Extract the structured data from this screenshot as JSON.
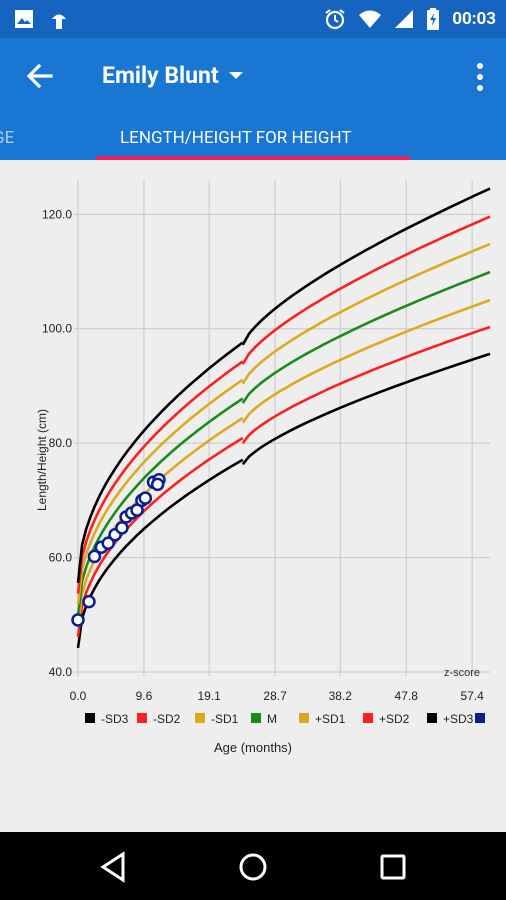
{
  "status_bar": {
    "time": "00:03",
    "icons": [
      "gallery-icon",
      "android-icon",
      "alarm-icon",
      "wifi-icon",
      "signal-icon",
      "battery-charging-icon"
    ]
  },
  "app_bar": {
    "title": "Emily Blunt",
    "back_icon": "arrow-back-icon",
    "dropdown_icon": "arrow-drop-down-icon",
    "menu_icon": "more-vert-icon"
  },
  "tabs": [
    {
      "label": "AGE",
      "active": false
    },
    {
      "label": "LENGTH/HEIGHT FOR HEIGHT",
      "active": true
    }
  ],
  "chart_data": {
    "type": "line",
    "xlabel": "Age (months)",
    "ylabel": "Length/Height (cm)",
    "xlim": [
      0,
      60
    ],
    "ylim": [
      40,
      126
    ],
    "x_ticks": [
      "0.0",
      "9.6",
      "19.1",
      "28.7",
      "38.2",
      "47.8",
      "57.4"
    ],
    "y_ticks": [
      "40.0",
      "60.0",
      "80.0",
      "100.0",
      "120.0"
    ],
    "corner_label": "z-score",
    "legend_position": "bottom",
    "grid": true,
    "series": [
      {
        "name": "-SD3",
        "color": "#000000",
        "x": [
          0,
          24,
          24,
          60
        ],
        "y": [
          44.2,
          77.1,
          76.3,
          95.6
        ]
      },
      {
        "name": "-SD2",
        "color": "#ff2020",
        "x": [
          0,
          24,
          24,
          60
        ],
        "y": [
          46.1,
          80.9,
          80.0,
          100.3
        ]
      },
      {
        "name": "-SD1",
        "color": "#dcaa20",
        "x": [
          0,
          24,
          24,
          60
        ],
        "y": [
          48.0,
          84.4,
          83.6,
          105.0
        ]
      },
      {
        "name": "M",
        "color": "#1a8c1a",
        "x": [
          0,
          24,
          24,
          60
        ],
        "y": [
          49.9,
          87.8,
          87.0,
          109.9
        ]
      },
      {
        "name": "+SD1",
        "color": "#dcaa20",
        "x": [
          0,
          24,
          24,
          60
        ],
        "y": [
          51.8,
          91.1,
          90.4,
          114.8
        ]
      },
      {
        "name": "+SD2",
        "color": "#ff2020",
        "x": [
          0,
          24,
          24,
          60
        ],
        "y": [
          53.7,
          94.3,
          93.8,
          119.6
        ]
      },
      {
        "name": "+SD3",
        "color": "#000000",
        "x": [
          0,
          24,
          24,
          60
        ],
        "y": [
          55.6,
          97.6,
          97.2,
          124.5
        ]
      },
      {
        "name": "",
        "color": "#0a1f8f",
        "points": true,
        "x": [
          0.0,
          1.6,
          2.4,
          3.4,
          4.4,
          5.4,
          6.4,
          7.0,
          7.8,
          8.6,
          9.3,
          9.8,
          11.0,
          11.8,
          11.6
        ],
        "y": [
          49.1,
          52.3,
          60.2,
          61.8,
          62.5,
          64.0,
          65.2,
          67.1,
          67.8,
          68.3,
          70.0,
          70.4,
          73.2,
          73.6,
          72.8
        ]
      }
    ]
  },
  "legend": [
    {
      "label": "-SD3",
      "color": "#000000"
    },
    {
      "label": "-SD2",
      "color": "#ff2020"
    },
    {
      "label": "-SD1",
      "color": "#dcaa20"
    },
    {
      "label": "M",
      "color": "#1a8c1a"
    },
    {
      "label": "+SD1",
      "color": "#dcaa20"
    },
    {
      "label": "+SD2",
      "color": "#ff2020"
    },
    {
      "label": "+SD3",
      "color": "#000000"
    },
    {
      "label": "",
      "color": "#0a1f8f"
    }
  ],
  "nav_bar": {
    "icons": [
      "back-triangle-icon",
      "home-circle-icon",
      "recents-square-icon"
    ]
  },
  "colors": {
    "status_bar": "#1565c0",
    "app_bar": "#1976d2",
    "tab_indicator": "#e91e63"
  }
}
